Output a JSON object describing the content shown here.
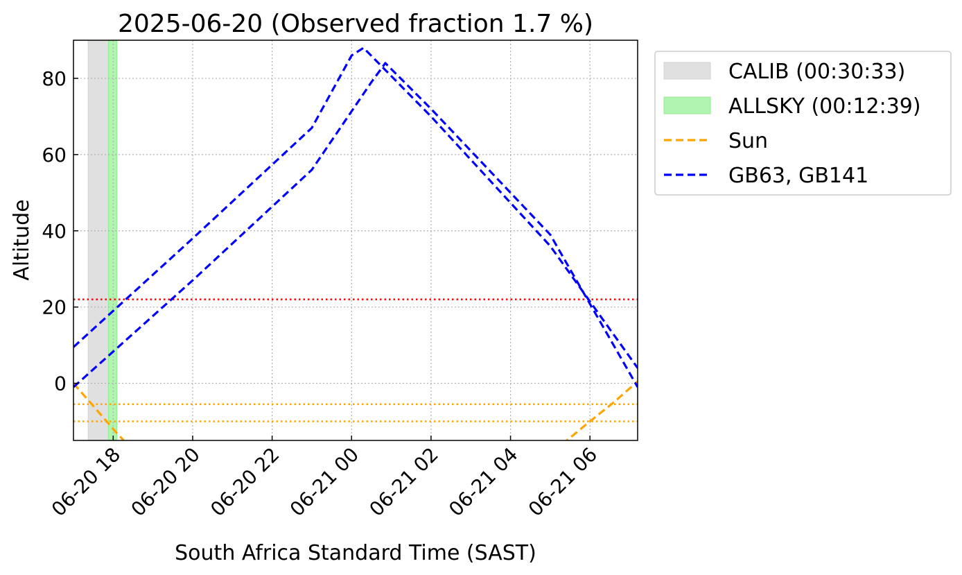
{
  "chart_data": {
    "type": "line",
    "title": "2025-06-20 (Observed fraction 1.7 %)",
    "xlabel": "South Africa Standard Time (SAST)",
    "ylabel": "Altitude",
    "x_unit": "hours since 2025-06-20 00:00 SAST",
    "xlim": [
      17.0,
      31.2
    ],
    "ylim": [
      -15,
      90
    ],
    "x_ticks": [
      {
        "value": 18,
        "label": "06-20 18"
      },
      {
        "value": 20,
        "label": "06-20 20"
      },
      {
        "value": 22,
        "label": "06-20 22"
      },
      {
        "value": 24,
        "label": "06-21 00"
      },
      {
        "value": 26,
        "label": "06-21 02"
      },
      {
        "value": 28,
        "label": "06-21 04"
      },
      {
        "value": 30,
        "label": "06-21 06"
      }
    ],
    "y_ticks": [
      0,
      20,
      40,
      60,
      80
    ],
    "grid": true,
    "legend_position": "outside-right",
    "spans": [
      {
        "name": "CALIB (00:30:33)",
        "x0": 17.37,
        "x1": 17.88,
        "color": "#d3d3d3"
      },
      {
        "name": "ALLSKY (00:12:39)",
        "x0": 17.88,
        "x1": 18.09,
        "color": "#90ee90"
      }
    ],
    "hlines": [
      {
        "y": 22,
        "color": "#ff0000",
        "style": "dotted"
      },
      {
        "y": -5.5,
        "color": "#ffa500",
        "style": "dotted"
      },
      {
        "y": -10,
        "color": "#ffa500",
        "style": "dotted"
      }
    ],
    "series": [
      {
        "name": "Sun",
        "color": "#ffa500",
        "style": "dashed",
        "segments": [
          {
            "x": [
              17.0,
              17.5,
              18.0,
              18.35
            ],
            "y": [
              0,
              -6,
              -12,
              -16
            ]
          },
          {
            "x": [
              29.3,
              30.0,
              30.6,
              31.2
            ],
            "y": [
              -16,
              -10,
              -5,
              0.5
            ]
          }
        ]
      },
      {
        "name": "GB63, GB141",
        "color": "#0000ff",
        "style": "dashed",
        "segments": [
          {
            "x": [
              17.0,
              20.0,
              23.0,
              24.0,
              24.3,
              26.0,
              29.0,
              31.2
            ],
            "y": [
              9.5,
              38,
              67,
              86,
              88,
              70,
              36,
              4
            ]
          },
          {
            "x": [
              17.0,
              20.0,
              23.0,
              24.5,
              24.85,
              26.0,
              29.0,
              31.2
            ],
            "y": [
              -1,
              27,
              56,
              79,
              84,
              72,
              39,
              -1
            ]
          }
        ]
      }
    ]
  },
  "legend": {
    "items": [
      {
        "label": "CALIB (00:30:33)",
        "kind": "patch",
        "color": "#d3d3d3"
      },
      {
        "label": "ALLSKY (00:12:39)",
        "kind": "patch",
        "color": "#90ee90"
      },
      {
        "label": "Sun",
        "kind": "line",
        "color": "#ffa500"
      },
      {
        "label": "GB63, GB141",
        "kind": "line",
        "color": "#0000ff"
      }
    ]
  }
}
